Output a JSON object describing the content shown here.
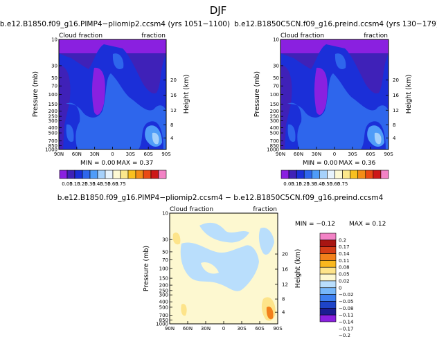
{
  "figure_title": "DJF",
  "colors": {
    "levels": [
      "#8a20e0",
      "#3f21b8",
      "#1b2fd8",
      "#2e66ec",
      "#4f9cf8",
      "#a6d1fb",
      "#e7f3fd",
      "#fdf9d4",
      "#fce88b",
      "#f9c01f",
      "#f38d17",
      "#ea4a14",
      "#cd1717",
      "#f383c6"
    ],
    "diff": [
      "#8a20e0",
      "#1b1d92",
      "#1e44c8",
      "#3d7ff0",
      "#76b7fa",
      "#b9defc",
      "#fdf8d0",
      "#fde48a",
      "#f9b81f",
      "#f2801b",
      "#d53d17",
      "#a81512",
      "#f383c6"
    ]
  },
  "chart_data": [
    {
      "type": "heatmap",
      "panel": "top-left",
      "title": "b.e12.B1850.f09_g16.PIMP4−pliomip2.ccsm4 (yrs 1051−1100)",
      "left_label": "Cloud fraction",
      "right_label": "fraction",
      "ylabel": "Pressure (mb)",
      "ylabel_right": "Height (km)",
      "x_ticks": [
        "90N",
        "60N",
        "30N",
        "0",
        "30S",
        "60S",
        "90S"
      ],
      "y_ticks": [
        "10",
        "30",
        "50",
        "70",
        "100",
        "150",
        "200",
        "250",
        "300",
        "400",
        "500",
        "700",
        "850",
        "1000"
      ],
      "y_right_ticks": [
        "20",
        "16",
        "12",
        "8",
        "4"
      ],
      "min": "0.00",
      "max": "0.37",
      "min_text": "MIN = 0.00",
      "max_text": "MAX = 0.37"
    },
    {
      "type": "heatmap",
      "panel": "top-right",
      "title": "b.e12.B1850C5CN.f09_g16.preind.ccsm4 (yrs 130−179)",
      "left_label": "Cloud fraction",
      "right_label": "fraction",
      "ylabel": "Pressure (mb)",
      "ylabel_right": "Height (km)",
      "x_ticks": [
        "90N",
        "60N",
        "30N",
        "0",
        "30S",
        "60S",
        "90S"
      ],
      "y_ticks": [
        "10",
        "30",
        "50",
        "70",
        "100",
        "150",
        "200",
        "250",
        "300",
        "400",
        "500",
        "700",
        "850",
        "1000"
      ],
      "y_right_ticks": [
        "20",
        "16",
        "12",
        "8",
        "4"
      ],
      "min": "0.00",
      "max": "0.36",
      "min_text": "MIN = 0.00",
      "max_text": "MAX = 0.36"
    },
    {
      "type": "heatmap",
      "panel": "bottom",
      "title": "b.e12.B1850.f09_g16.PIMP4−pliomip2.ccsm4 − b.e12.B1850C5CN.f09_g16.preind.ccsm4",
      "left_label": "Cloud fraction",
      "right_label": "fraction",
      "ylabel": "Pressure (mb)",
      "ylabel_right": "Height (km)",
      "x_ticks": [
        "90N",
        "60N",
        "30N",
        "0",
        "30S",
        "60S",
        "90S"
      ],
      "y_ticks": [
        "10",
        "30",
        "50",
        "70",
        "100",
        "150",
        "200",
        "250",
        "300",
        "400",
        "500",
        "700",
        "850",
        "1000"
      ],
      "y_right_ticks": [
        "20",
        "16",
        "12",
        "8",
        "4"
      ],
      "min": "−0.12",
      "max": "0.12",
      "min_text": "MIN = −0.12",
      "max_text": "MAX = 0.12"
    }
  ],
  "colorbar_main": {
    "labels": [
      "0.05",
      "0.15",
      "0.25",
      "0.35",
      "0.45",
      "0.55",
      "0.65",
      "0.75"
    ]
  },
  "colorbar_diff": {
    "labels": [
      "0.2",
      "0.17",
      "0.14",
      "0.11",
      "0.08",
      "0.05",
      "0.02",
      "0",
      "−0.02",
      "−0.05",
      "−0.08",
      "−0.11",
      "−0.14",
      "−0.17",
      "−0.2"
    ]
  }
}
